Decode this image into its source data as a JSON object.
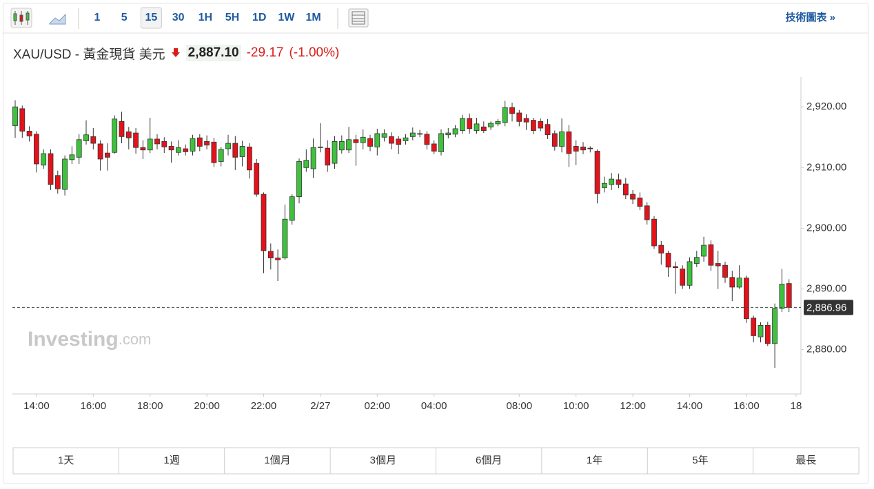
{
  "toolbar": {
    "intervals": [
      "1",
      "5",
      "15",
      "30",
      "1H",
      "5H",
      "1D",
      "1W",
      "1M"
    ],
    "link": "技術圖表 »"
  },
  "quote": {
    "symbol": "XAU/USD - 黃金現貨 美元",
    "price": "2,887.10",
    "change": "-29.17",
    "change_pct": "(-1.00%)"
  },
  "watermark": {
    "brand": "Investing",
    "suffix": ".com"
  },
  "chart_data": {
    "type": "candlestick",
    "categories": [
      null,
      null,
      null,
      "14:00",
      null,
      null,
      null,
      null,
      null,
      null,
      null,
      "16:00",
      null,
      null,
      null,
      null,
      null,
      null,
      null,
      "18:00",
      null,
      null,
      null,
      null,
      null,
      null,
      null,
      "20:00",
      null,
      null,
      null,
      null,
      null,
      null,
      null,
      "22:00",
      null,
      null,
      null,
      null,
      null,
      null,
      null,
      "2/27",
      null,
      null,
      null,
      null,
      null,
      null,
      null,
      "02:00",
      null,
      null,
      null,
      null,
      null,
      null,
      null,
      "04:00",
      null,
      null,
      null,
      null,
      null,
      null,
      null,
      null,
      null,
      null,
      null,
      "08:00",
      null,
      null,
      null,
      null,
      null,
      null,
      null,
      "10:00",
      null,
      null,
      null,
      null,
      null,
      null,
      null,
      "12:00",
      null,
      null,
      null,
      null,
      null,
      null,
      null,
      "14:00",
      null,
      null,
      null,
      null,
      null,
      null,
      null,
      "16:00",
      null,
      null,
      null,
      null,
      null,
      null,
      "18"
    ],
    "open": [
      2916.9,
      2919.7,
      2916,
      2915.5,
      2910.4,
      2912.3,
      2908.7,
      2906.4,
      2911.3,
      2911.7,
      2914.4,
      2915.1,
      2913.9,
      2912.4,
      2912.5,
      2917.6,
      2915.9,
      2915.7,
      2913.3,
      2912.9,
      2914.7,
      2914.3,
      2913.5,
      2912.5,
      2913.1,
      2912.7,
      2914.9,
      2914.3,
      2914.2,
      2911,
      2913.1,
      2914,
      2911.8,
      2913.4,
      2910.7,
      2905.6,
      2896.2,
      2895.1,
      2895.1,
      2901.3,
      2905.2,
      2910,
      2909.8,
      2913.3,
      2913.2,
      2910.7,
      2912.9,
      2912.9,
      2914.6,
      2914.1,
      2914.8,
      2913.4,
      2915,
      2915.1,
      2914.7,
      2914.4,
      2915.1,
      2915.5,
      2915.5,
      2913.9,
      2912.6,
      2915.4,
      2915.5,
      2916.1,
      2918.1,
      2916.1,
      2916.7,
      2916.7,
      2917.2,
      2917.4,
      2919.9,
      2919,
      2918.1,
      2917.8,
      2917.6,
      2917.1,
      2915.6,
      2913.5,
      2915.9,
      2913.5,
      2913.4,
      2913.2,
      2912.7,
      2906.7,
      2907.2,
      2908,
      2907.3,
      2905.6,
      2905,
      2903.7,
      2901.5,
      2897.2,
      2895.9,
      2893.7,
      2893.3,
      2890.6,
      2894.2,
      2895.4,
      2897.3,
      2894.2,
      2893.9,
      2891.9,
      2890.3,
      2891.8,
      2885.2,
      2882.1,
      2884,
      2881,
      2886.8,
      2890.9,
      null
    ],
    "high": [
      2921.1,
      2920.2,
      2916.8,
      2916,
      2913,
      2913,
      2909.5,
      2912,
      2913.5,
      2915.5,
      2917.8,
      2916.5,
      2914.5,
      2914,
      2918.6,
      2919.2,
      2916.7,
      2916.5,
      2914.5,
      2918.2,
      2915.5,
      2915,
      2914.3,
      2914.5,
      2913.8,
      2915.4,
      2915.5,
      2915.3,
      2914.9,
      2913.4,
      2915.4,
      2915.2,
      2914.4,
      2914,
      2911.4,
      2905.9,
      2897.5,
      2896.5,
      2903.9,
      2905.6,
      2911.5,
      2913,
      2914.8,
      2917.3,
      2914.5,
      2915.2,
      2915.3,
      2916.7,
      2915.4,
      2916.3,
      2915.4,
      2916.4,
      2916.3,
      2915.8,
      2915.2,
      2915.5,
      2916.6,
      2916.2,
      2916,
      2914.5,
      2916.3,
      2916.5,
      2917,
      2918.7,
      2918.9,
      2918.2,
      2917.6,
      2917.6,
      2918,
      2921,
      2920.7,
      2919.5,
      2918.8,
      2918.2,
      2918.1,
      2918,
      2916.1,
      2918.1,
      2917,
      2914.5,
      2914.2,
      2913.5,
      2913,
      2908.5,
      2909.1,
      2909,
      2908.3,
      2906.3,
      2905.9,
      2904.3,
      2902,
      2897.9,
      2896.3,
      2894.5,
      2893.9,
      2895.2,
      2896.3,
      2898.6,
      2898,
      2896.3,
      2894.5,
      2893,
      2893.9,
      2892.2,
      2885.6,
      2884.5,
      2884.6,
      2887.6,
      2893.3,
      2891.6,
      null
    ],
    "low": [
      2914.9,
      2914.9,
      2914.3,
      2909.2,
      2909.8,
      2906.3,
      2905.7,
      2905.4,
      2910.6,
      2910.6,
      2913.8,
      2913,
      2909.5,
      2909.5,
      2912.3,
      2914,
      2913,
      2912.3,
      2911.4,
      2912.4,
      2913,
      2912.4,
      2910.8,
      2912,
      2912,
      2912,
      2912.7,
      2913,
      2910.1,
      2910.2,
      2912,
      2909.6,
      2910.2,
      2908.2,
      2905.2,
      2892.6,
      2893.2,
      2891.3,
      2894.8,
      2900.6,
      2904.1,
      2909.3,
      2908.3,
      2912.5,
      2909.3,
      2909.8,
      2912.3,
      2912.4,
      2910.3,
      2913,
      2912.7,
      2912,
      2914.3,
      2913,
      2912.2,
      2913.8,
      2914.5,
      2915,
      2913,
      2912.2,
      2912,
      2914.8,
      2915,
      2915.6,
      2915.6,
      2915.6,
      2915.7,
      2916.2,
      2916.8,
      2916.8,
      2917.6,
      2916.8,
      2916.2,
      2915.5,
      2916,
      2914.7,
      2912.8,
      2912.5,
      2910.1,
      2910.4,
      2912.2,
      2912.5,
      2904.1,
      2905.9,
      2906.3,
      2906.6,
      2904.8,
      2904,
      2903,
      2900.6,
      2896.6,
      2894,
      2892,
      2889.2,
      2890,
      2890,
      2893.6,
      2894.5,
      2893,
      2890,
      2891,
      2888,
      2890,
      2884.4,
      2881.2,
      2881.2,
      2880.6,
      2877,
      2886.2,
      2886.2,
      null
    ],
    "close": [
      2920,
      2916,
      2915.2,
      2910.6,
      2912.3,
      2907.2,
      2906.5,
      2911.4,
      2912.1,
      2914.6,
      2915.4,
      2914,
      2911.4,
      2911.7,
      2918,
      2915.1,
      2914.9,
      2913.3,
      2912.9,
      2914.7,
      2913.9,
      2913.4,
      2912.9,
      2913.3,
      2912.6,
      2914.8,
      2913.5,
      2913.7,
      2910.8,
      2913,
      2914,
      2911.7,
      2913.5,
      2909.6,
      2905.6,
      2896.3,
      2895.1,
      2894.8,
      2901.5,
      2905.2,
      2911,
      2911.2,
      2913.3,
      2913.4,
      2910.4,
      2914.3,
      2914.3,
      2914.6,
      2914.1,
      2915,
      2913.5,
      2915.6,
      2915.6,
      2914,
      2913.8,
      2914.9,
      2915.7,
      2915.6,
      2913.8,
      2912.7,
      2915.6,
      2915.7,
      2916.4,
      2918.1,
      2916.4,
      2917.2,
      2916.1,
      2917.3,
      2917.6,
      2919.9,
      2918.9,
      2917.6,
      2917.5,
      2916.1,
      2916.5,
      2915.4,
      2913.5,
      2915.9,
      2912.3,
      2912.7,
      2912.9,
      2913.1,
      2905.7,
      2907.4,
      2908.1,
      2907.2,
      2905.5,
      2904.8,
      2903.6,
      2901.4,
      2897.1,
      2895.9,
      2893.6,
      2893.5,
      2890.6,
      2894.5,
      2895.2,
      2897.2,
      2893.9,
      2893.8,
      2891.9,
      2890.3,
      2891.8,
      2885.1,
      2882.3,
      2884,
      2881,
      2886.8,
      2890.8,
      2886.96,
      null
    ],
    "up_color": "#3ec23c",
    "down_color": "#e3131b",
    "ylim": [
      2872.7,
      2924.9
    ],
    "yticks": [
      {
        "value": 2880,
        "label": "2,880.00"
      },
      {
        "value": 2890,
        "label": "2,890.00"
      },
      {
        "value": 2900,
        "label": "2,900.00"
      },
      {
        "value": 2910,
        "label": "2,910.00"
      },
      {
        "value": 2920,
        "label": "2,920.00"
      }
    ],
    "last_price": {
      "value": 2886.96,
      "label": "2,886.96"
    }
  },
  "ranges": [
    "1天",
    "1週",
    "1個月",
    "3個月",
    "6個月",
    "1年",
    "5年",
    "最長"
  ]
}
